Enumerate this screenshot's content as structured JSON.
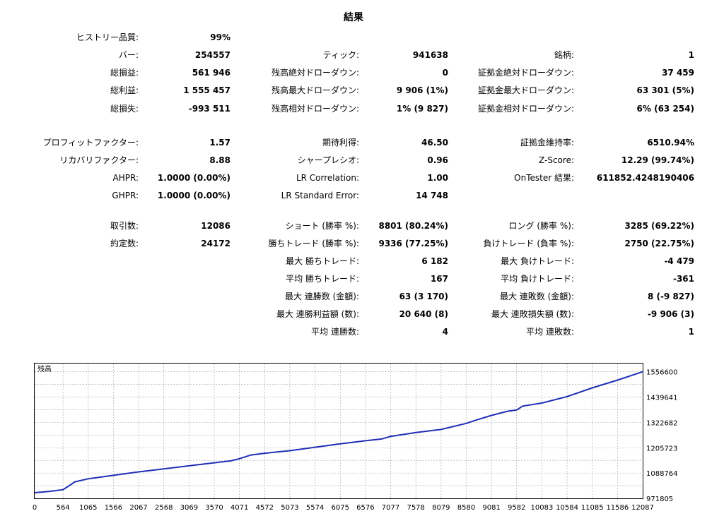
{
  "report": {
    "title": "結果",
    "rows": [
      [
        {
          "label": "ヒストリー品質:",
          "value": "99%"
        },
        null,
        null
      ],
      [
        {
          "label": "バー:",
          "value": "254557"
        },
        {
          "label": "ティック:",
          "value": "941638"
        },
        {
          "label": "銘柄:",
          "value": "1"
        }
      ],
      [
        {
          "label": "総損益:",
          "value": "561 946"
        },
        {
          "label": "残高絶対ドローダウン:",
          "value": "0"
        },
        {
          "label": "証拠金絶対ドローダウン:",
          "value": "37 459"
        }
      ],
      [
        {
          "label": "総利益:",
          "value": "1 555 457"
        },
        {
          "label": "残高最大ドローダウン:",
          "value": "9 906 (1%)"
        },
        {
          "label": "証拠金最大ドローダウン:",
          "value": "63 301 (5%)"
        }
      ],
      [
        {
          "label": "総損失:",
          "value": "-993 511"
        },
        {
          "label": "残高相対ドローダウン:",
          "value": "1% (9 827)"
        },
        {
          "label": "証拠金相対ドローダウン:",
          "value": "6% (63 254)"
        }
      ],
      [
        {
          "label": "プロフィットファクター:",
          "value": "1.57"
        },
        {
          "label": "期待利得:",
          "value": "46.50"
        },
        {
          "label": "証拠金維持率:",
          "value": "6510.94%"
        }
      ],
      [
        {
          "label": "リカバリファクター:",
          "value": "8.88"
        },
        {
          "label": "シャープレシオ:",
          "value": "0.96"
        },
        {
          "label": "Z-Score:",
          "value": "12.29 (99.74%)"
        }
      ],
      [
        {
          "label": "AHPR:",
          "value": "1.0000 (0.00%)"
        },
        {
          "label": "LR Correlation:",
          "value": "1.00"
        },
        {
          "label": "OnTester 結果:",
          "value": "611852.4248190406"
        }
      ],
      [
        {
          "label": "GHPR:",
          "value": "1.0000 (0.00%)"
        },
        {
          "label": "LR Standard Error:",
          "value": "14 748"
        },
        null
      ],
      [
        {
          "label": "取引数:",
          "value": "12086"
        },
        {
          "label": "ショート (勝率 %):",
          "value": "8801 (80.24%)"
        },
        {
          "label": "ロング (勝率 %):",
          "value": "3285 (69.22%)"
        }
      ],
      [
        {
          "label": "約定数:",
          "value": "24172"
        },
        {
          "label": "勝ちトレード (勝率 %):",
          "value": "9336 (77.25%)"
        },
        {
          "label": "負けトレード (負率 %):",
          "value": "2750 (22.75%)"
        }
      ],
      [
        null,
        {
          "label": "最大 勝ちトレード:",
          "value": "6 182"
        },
        {
          "label": "最大 負けトレード:",
          "value": "-4 479"
        }
      ],
      [
        null,
        {
          "label": "平均 勝ちトレード:",
          "value": "167"
        },
        {
          "label": "平均 負けトレード:",
          "value": "-361"
        }
      ],
      [
        null,
        {
          "label": "最大 連勝数 (金額):",
          "value": "63 (3 170)"
        },
        {
          "label": "最大 連敗数 (金額):",
          "value": "8 (-9 827)"
        }
      ],
      [
        null,
        {
          "label": "最大 連勝利益額 (数):",
          "value": "20 640 (8)"
        },
        {
          "label": "最大 連敗損失額 (数):",
          "value": "-9 906 (3)"
        }
      ],
      [
        null,
        {
          "label": "平均 連勝数:",
          "value": "4"
        },
        {
          "label": "平均 連敗数:",
          "value": "1"
        }
      ]
    ]
  },
  "chart_data": {
    "type": "line",
    "title": "残高",
    "xlabel": "",
    "ylabel": "",
    "xlim": [
      0,
      12087
    ],
    "ylim": [
      971805,
      1575000
    ],
    "x_ticks": [
      "0",
      "564",
      "1065",
      "1566",
      "2067",
      "2568",
      "3069",
      "3570",
      "4071",
      "4572",
      "5073",
      "5574",
      "6075",
      "6576",
      "7077",
      "7578",
      "8079",
      "8580",
      "9081",
      "9582",
      "10083",
      "10584",
      "11085",
      "11586",
      "12087"
    ],
    "y_ticks": [
      "1556600",
      "1439641",
      "1322682",
      "1205723",
      "1088764",
      "971805"
    ],
    "grid": true,
    "series": [
      {
        "color": "#1f2fb5",
        "x": [
          0,
          300,
          564,
          700,
          800,
          1065,
          1566,
          2067,
          2568,
          3069,
          3570,
          3900,
          4071,
          4300,
          4572,
          5073,
          5574,
          6075,
          6576,
          6900,
          7077,
          7578,
          8079,
          8580,
          8800,
          9081,
          9400,
          9582,
          9700,
          10083,
          10584,
          11085,
          11586,
          12087
        ],
        "y": [
          998000,
          1004000,
          1012000,
          1032000,
          1048000,
          1062000,
          1078000,
          1094000,
          1108000,
          1122000,
          1136000,
          1145000,
          1155000,
          1172000,
          1180000,
          1192000,
          1208000,
          1224000,
          1238000,
          1246000,
          1258000,
          1276000,
          1290000,
          1318000,
          1335000,
          1355000,
          1374000,
          1380000,
          1398000,
          1412000,
          1442000,
          1482000,
          1518000,
          1556600
        ]
      }
    ]
  }
}
